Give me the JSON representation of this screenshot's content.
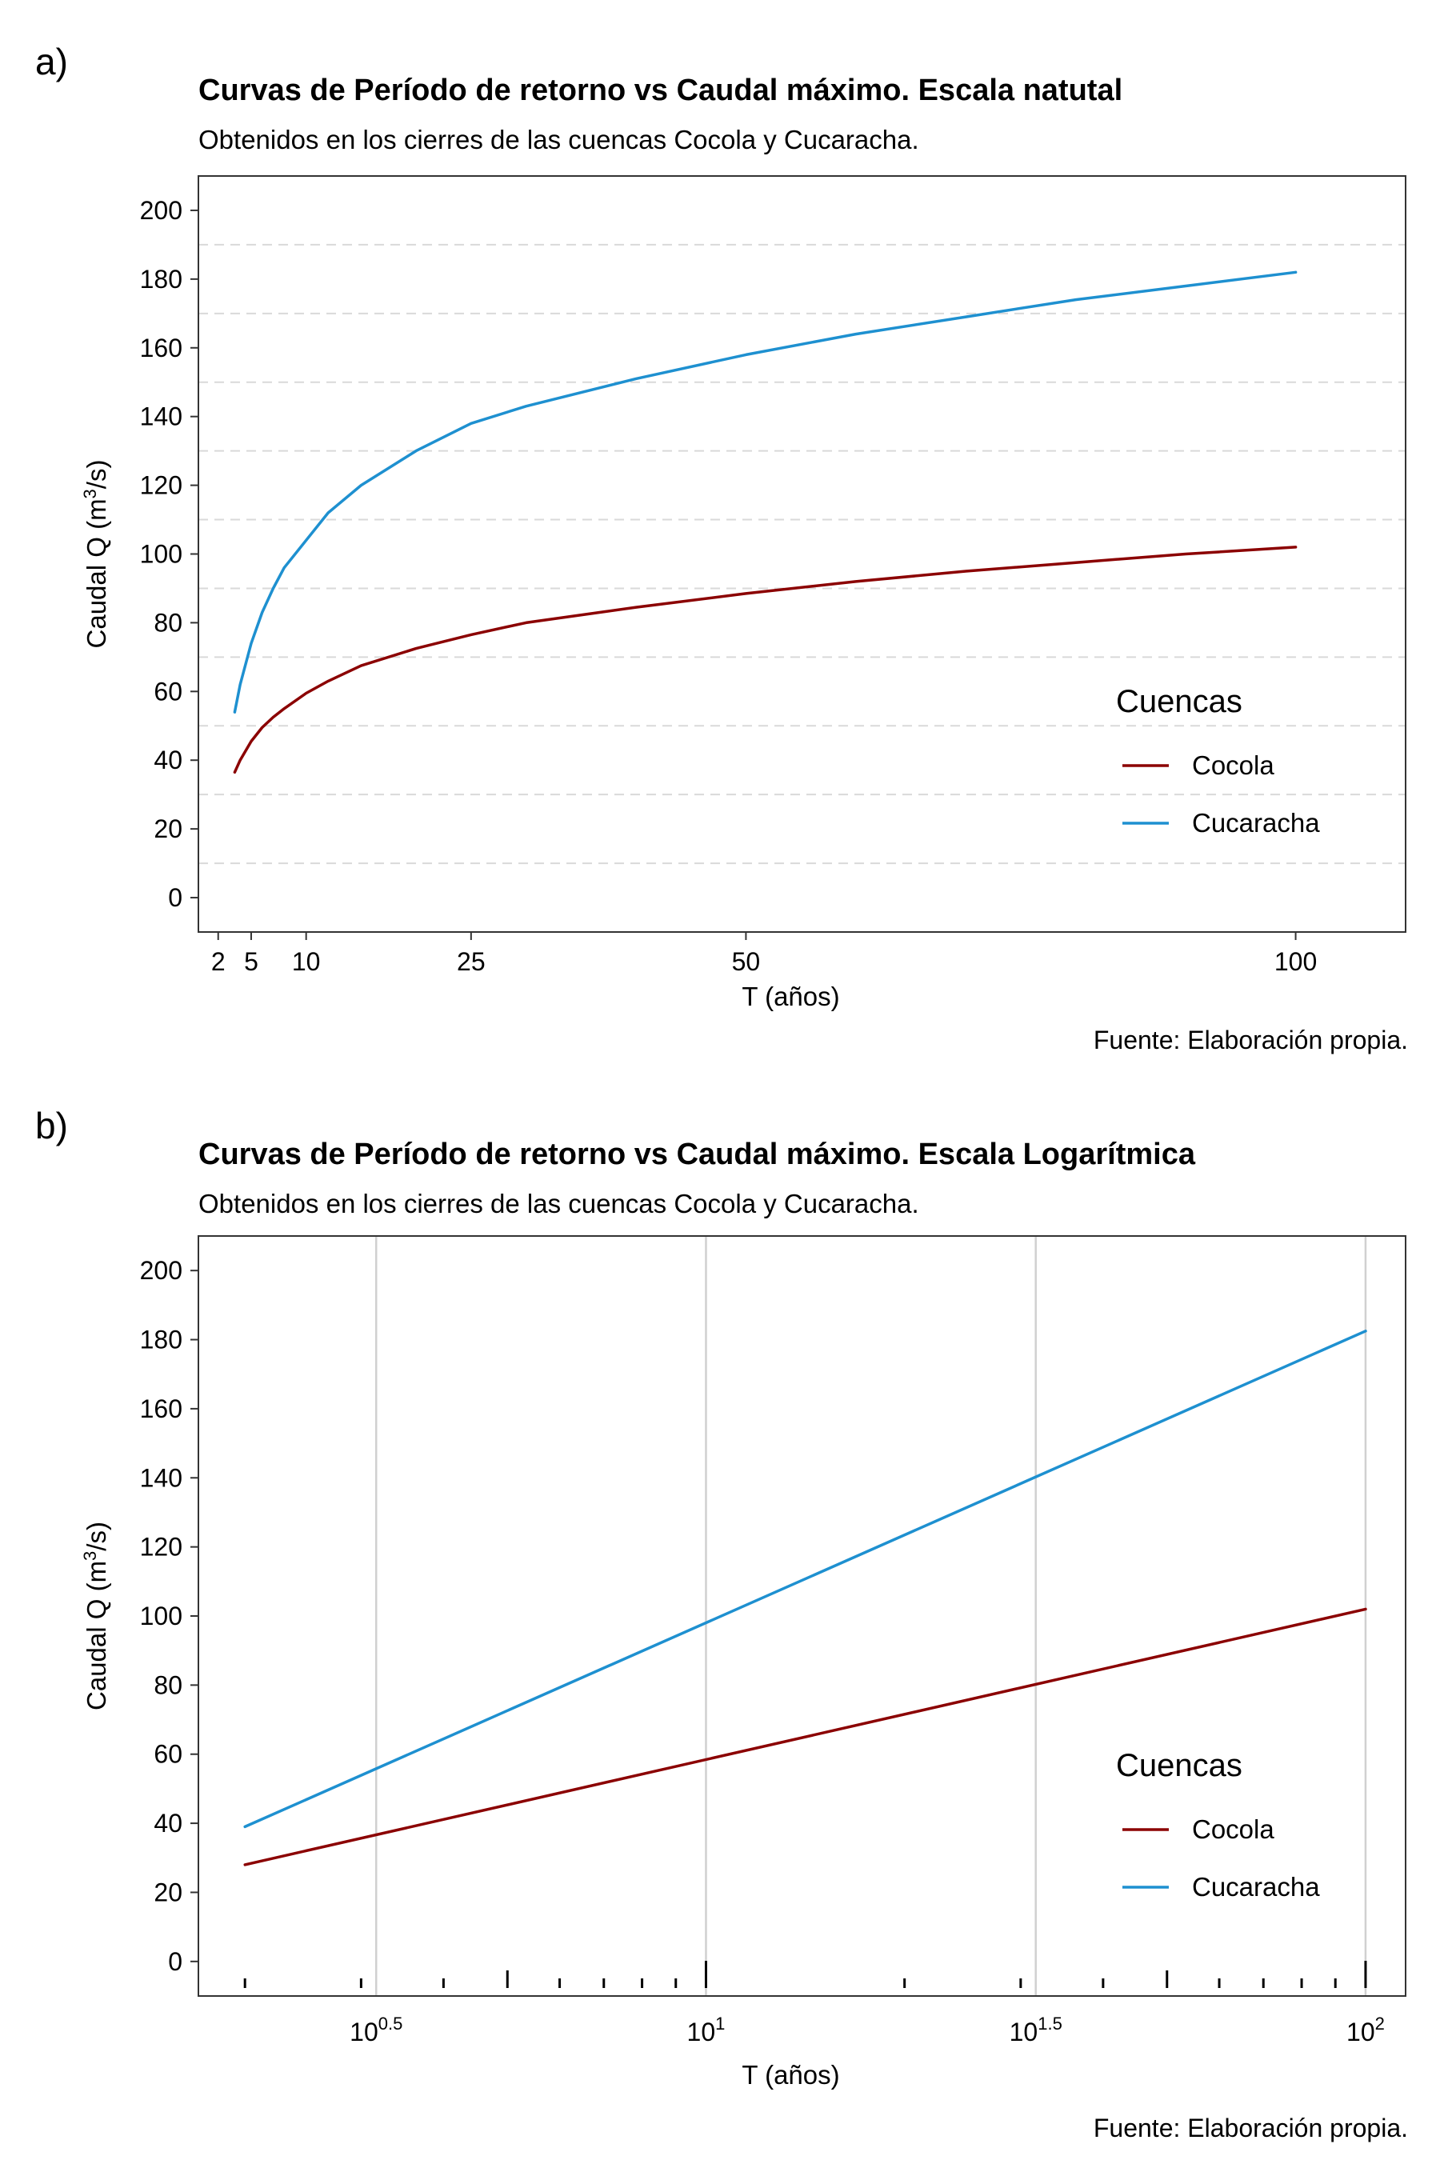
{
  "panels": {
    "a": {
      "label": "a)",
      "caption": "Fuente: Elaboración propia.",
      "ylabel_main": "Caudal Q (m",
      "ylabel_sup": "3",
      "ylabel_end": "/s)"
    },
    "b": {
      "label": "b)",
      "caption": "Fuente: Elaboración propia.",
      "ylabel_main": "Caudal Q (m",
      "ylabel_sup": "3",
      "ylabel_end": "/s)"
    }
  },
  "chart_data": [
    {
      "type": "line",
      "title": "Curvas de Período de retorno vs Caudal máximo. Escala natutal",
      "subtitle": "Obtenidos en los cierres de las cuencas Cocola y Cucaracha.",
      "xlabel": "T (años)",
      "ylabel": "Caudal Q (m3/s)",
      "x_scale": "linear",
      "xlim": [
        0.2,
        110
      ],
      "ylim": [
        -10,
        210
      ],
      "x_ticks": [
        2,
        5,
        10,
        25,
        50,
        100
      ],
      "x_tick_labels": [
        "2",
        "5",
        "10",
        "25",
        "50",
        "100"
      ],
      "y_ticks": [
        0,
        20,
        40,
        60,
        80,
        100,
        120,
        140,
        160,
        180,
        200
      ],
      "y_tick_labels": [
        "0",
        "20",
        "40",
        "60",
        "80",
        "100",
        "120",
        "140",
        "160",
        "180",
        "200"
      ],
      "grid": "horizontal dashed minor lines only",
      "legend": {
        "title": "Cuencas",
        "position": "bottom-right"
      },
      "x": [
        3.5,
        4,
        5,
        6,
        7,
        8,
        10,
        12,
        15,
        20,
        25,
        30,
        40,
        50,
        60,
        70,
        80,
        90,
        100
      ],
      "series": [
        {
          "name": "Cocola",
          "color": "#8b0000",
          "values": [
            36.5,
            40,
            45.5,
            49.5,
            52.5,
            55,
            59.5,
            63,
            67.5,
            72.5,
            76.5,
            80,
            84.5,
            88.5,
            92,
            95,
            97.5,
            100,
            102
          ]
        },
        {
          "name": "Cucaracha",
          "color": "#1e90d0",
          "values": [
            54,
            62,
            74,
            83,
            90,
            96,
            104,
            112,
            120,
            130,
            138,
            143,
            151,
            158,
            164,
            169,
            174,
            178,
            182
          ]
        }
      ]
    },
    {
      "type": "line",
      "title": "Curvas de Período de retorno vs Caudal máximo. Escala Logarítmica",
      "subtitle": "Obtenidos en los cierres de las cuencas Cocola y Cucaracha.",
      "xlabel": "T (años)",
      "ylabel": "Caudal Q (m3/s)",
      "x_scale": "log10",
      "xlim": [
        1.7,
        115
      ],
      "ylim": [
        -10,
        210
      ],
      "x_ticks": [
        3.1623,
        10,
        31.623,
        100
      ],
      "x_tick_labels": [
        {
          "base": "10",
          "exp": "0.5"
        },
        {
          "base": "10",
          "exp": "1"
        },
        {
          "base": "10",
          "exp": "1.5"
        },
        {
          "base": "10",
          "exp": "2"
        }
      ],
      "y_ticks": [
        0,
        20,
        40,
        60,
        80,
        100,
        120,
        140,
        160,
        180,
        200
      ],
      "y_tick_labels": [
        "0",
        "20",
        "40",
        "60",
        "80",
        "100",
        "120",
        "140",
        "160",
        "180",
        "200"
      ],
      "grid": "vertical grid lines at major x ticks",
      "legend": {
        "title": "Cuencas",
        "position": "bottom-right"
      },
      "x": [
        2,
        100
      ],
      "series": [
        {
          "name": "Cocola",
          "color": "#8b0000",
          "values": [
            28,
            102
          ]
        },
        {
          "name": "Cucaracha",
          "color": "#1e90d0",
          "values": [
            39,
            182.5
          ]
        }
      ]
    }
  ]
}
